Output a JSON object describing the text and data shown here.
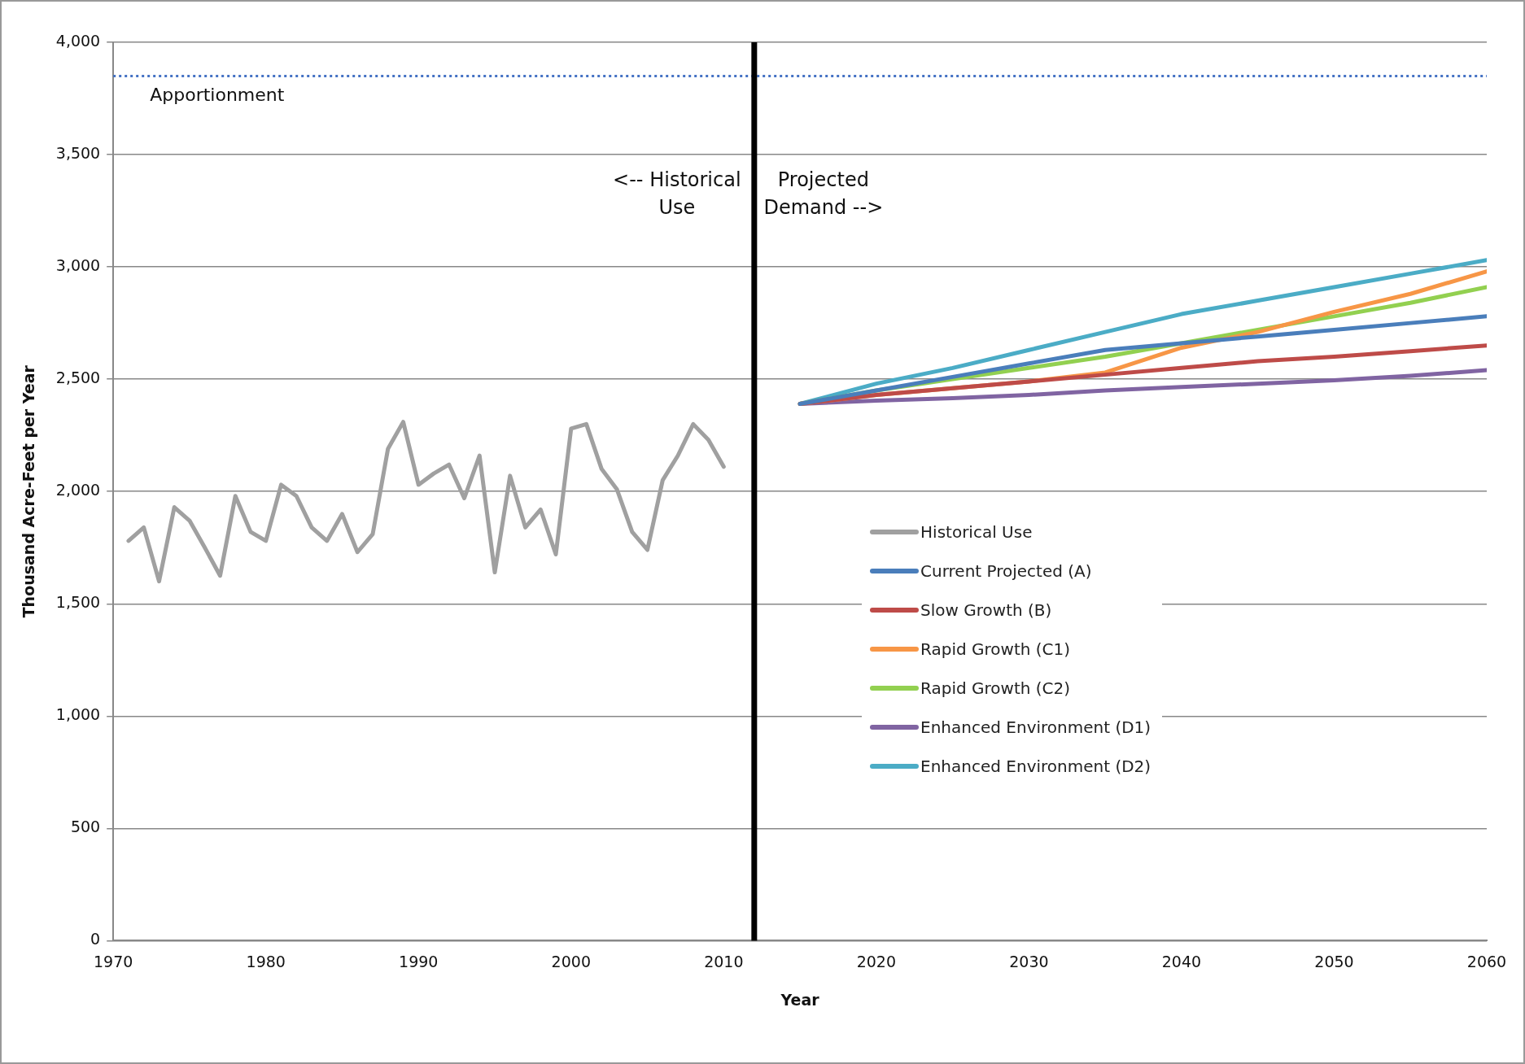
{
  "chart_data": {
    "type": "line",
    "xlabel": "Year",
    "ylabel": "Thousand Acre-Feet per Year",
    "xlim": [
      1970,
      2060
    ],
    "xticks": [
      1970,
      1980,
      1990,
      2000,
      2010,
      2020,
      2030,
      2040,
      2050,
      2060
    ],
    "ylim": [
      0,
      4000
    ],
    "yticks": [
      0,
      {
        "value": 500,
        "label": "500"
      },
      {
        "value": 1000,
        "label": "1,000"
      },
      {
        "value": 1500,
        "label": "1,500"
      },
      {
        "value": 2000,
        "label": "2,000"
      },
      {
        "value": 2500,
        "label": "2,500"
      },
      {
        "value": 3000,
        "label": "3,000"
      },
      {
        "value": 3500,
        "label": "3,500"
      },
      {
        "value": 4000,
        "label": "4,000"
      }
    ],
    "grid": "y",
    "legend": "bottom right",
    "line_style": "solid",
    "series": [
      {
        "name": "Historical Use",
        "color": "#a0a0a0",
        "x": [
          1971,
          1972,
          1973,
          1974,
          1975,
          1976,
          1977,
          1978,
          1979,
          1980,
          1981,
          1982,
          1983,
          1984,
          1985,
          1986,
          1987,
          1988,
          1989,
          1990,
          1991,
          1992,
          1993,
          1994,
          1995,
          1996,
          1997,
          1998,
          1999,
          2000,
          2001,
          2002,
          2003,
          2004,
          2005,
          2006,
          2007,
          2008,
          2009,
          2010
        ],
        "values": [
          1780,
          1840,
          1600,
          1930,
          1870,
          1750,
          1625,
          1980,
          1820,
          1780,
          2030,
          1980,
          1840,
          1780,
          1900,
          1730,
          1810,
          2190,
          2310,
          2030,
          2080,
          2120,
          1970,
          2160,
          1640,
          2070,
          1840,
          1920,
          1720,
          2280,
          2300,
          2100,
          2010,
          1820,
          1740,
          2050,
          2160,
          2300,
          2230,
          2110
        ]
      },
      {
        "name": "Current Projected (A)",
        "color": "#4a7ebb",
        "x": [
          2015,
          2020,
          2025,
          2030,
          2035,
          2040,
          2045,
          2050,
          2055,
          2060
        ],
        "values": [
          2390,
          2450,
          2510,
          2570,
          2630,
          2660,
          2690,
          2720,
          2750,
          2780
        ]
      },
      {
        "name": "Slow Growth (B)",
        "color": "#be4b48",
        "x": [
          2015,
          2020,
          2025,
          2030,
          2035,
          2040,
          2045,
          2050,
          2055,
          2060
        ],
        "values": [
          2390,
          2430,
          2460,
          2490,
          2520,
          2550,
          2580,
          2600,
          2625,
          2650
        ]
      },
      {
        "name": "Rapid Growth (C1)",
        "color": "#f79646",
        "x": [
          2015,
          2020,
          2025,
          2030,
          2035,
          2040,
          2045,
          2050,
          2055,
          2060
        ],
        "values": [
          2390,
          2430,
          2460,
          2490,
          2530,
          2640,
          2710,
          2800,
          2880,
          2980
        ]
      },
      {
        "name": "Rapid Growth (C2)",
        "color": "#92d050",
        "x": [
          2015,
          2020,
          2025,
          2030,
          2035,
          2040,
          2045,
          2050,
          2055,
          2060
        ],
        "values": [
          2390,
          2450,
          2500,
          2550,
          2600,
          2660,
          2720,
          2780,
          2840,
          2910
        ]
      },
      {
        "name": "Enhanced Environment (D1)",
        "color": "#8064a2",
        "x": [
          2015,
          2020,
          2025,
          2030,
          2035,
          2040,
          2045,
          2050,
          2055,
          2060
        ],
        "values": [
          2390,
          2405,
          2415,
          2430,
          2450,
          2465,
          2480,
          2495,
          2515,
          2540
        ]
      },
      {
        "name": "Enhanced Environment (D2)",
        "color": "#4bacc6",
        "x": [
          2015,
          2020,
          2025,
          2030,
          2035,
          2040,
          2045,
          2050,
          2055,
          2060
        ],
        "values": [
          2390,
          2480,
          2550,
          2630,
          2710,
          2790,
          2850,
          2910,
          2970,
          3030
        ]
      }
    ],
    "ref_lines": [
      {
        "axis": "y",
        "value": 3850,
        "label": "Apportionment",
        "color": "#4472c4",
        "line_style": "dotted"
      },
      {
        "axis": "x",
        "value": 2012,
        "color": "#000000",
        "line_style": "solid"
      }
    ],
    "annotations": [
      "<-- Historical Use",
      "Projected Demand -->"
    ]
  }
}
